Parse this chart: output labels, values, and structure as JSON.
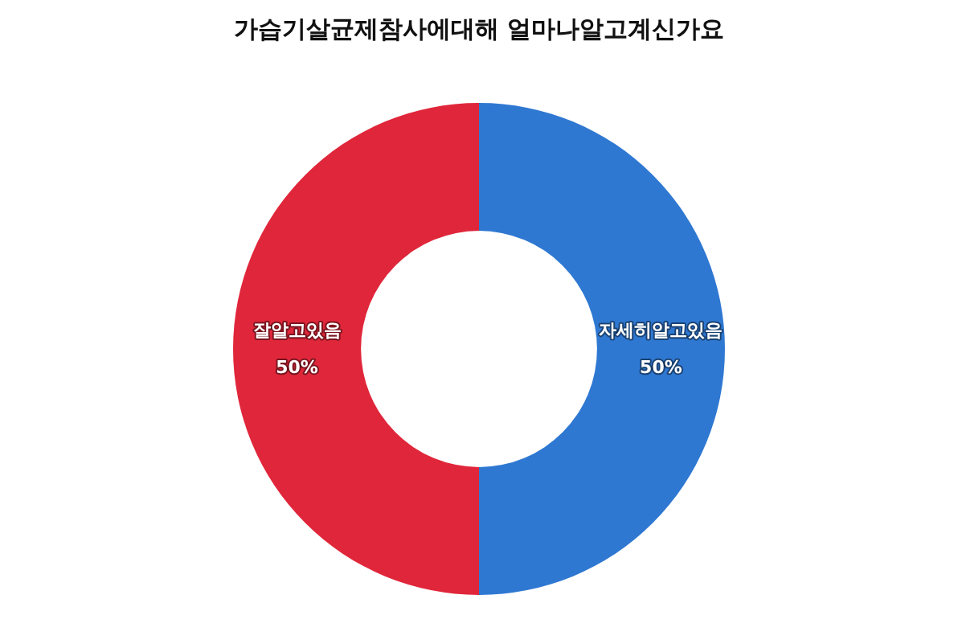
{
  "chart_data": {
    "type": "donut",
    "title": "가습기살균제참사에대해 얼마나알고계신가요",
    "categories": [
      "자세히알고있음",
      "잘알고있음"
    ],
    "values": [
      50,
      50
    ],
    "colors": [
      "#2f78d2",
      "#e0263a"
    ],
    "value_labels": [
      "50%",
      "50%"
    ],
    "legend": false
  }
}
